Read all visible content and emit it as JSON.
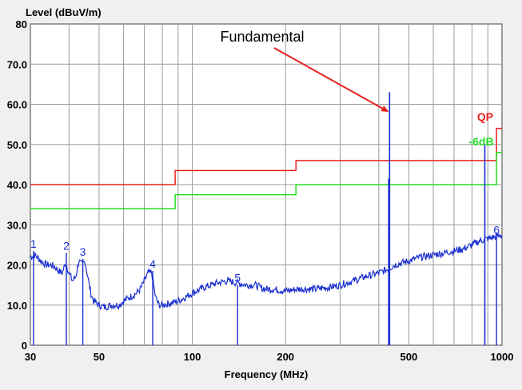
{
  "chart_data": {
    "type": "line",
    "ylabel": "Level (dBuV/m)",
    "xlabel": "Frequency (MHz)",
    "x_scale": "log",
    "xlim": [
      30,
      1000
    ],
    "ylim": [
      0,
      80
    ],
    "grid": true,
    "x_ticks": [
      {
        "value": 30,
        "label": "30"
      },
      {
        "value": 50,
        "label": "50"
      },
      {
        "value": 100,
        "label": "100"
      },
      {
        "value": 200,
        "label": "200"
      },
      {
        "value": 500,
        "label": "500"
      },
      {
        "value": 1000,
        "label": "1000"
      }
    ],
    "x_minor_ticks": [
      40,
      60,
      70,
      80,
      90,
      300,
      400,
      600,
      700,
      800,
      900
    ],
    "y_ticks": [
      {
        "value": 0,
        "label": "0"
      },
      {
        "value": 10,
        "label": "10.0"
      },
      {
        "value": 20,
        "label": "20.0"
      },
      {
        "value": 30,
        "label": "30.0"
      },
      {
        "value": 40,
        "label": "40.0"
      },
      {
        "value": 50,
        "label": "50.0"
      },
      {
        "value": 60,
        "label": "60.0"
      },
      {
        "value": 70,
        "label": "70.0"
      },
      {
        "value": 80,
        "label": "80"
      }
    ],
    "limit_lines": [
      {
        "name": "QP",
        "color": "#e8201c",
        "points": [
          [
            30,
            40
          ],
          [
            88,
            40
          ],
          [
            88,
            43.5
          ],
          [
            216,
            43.5
          ],
          [
            216,
            46
          ],
          [
            960,
            46
          ],
          [
            960,
            54
          ],
          [
            1000,
            54
          ]
        ]
      },
      {
        "name": "-6dB",
        "color": "#22dd22",
        "points": [
          [
            30,
            34
          ],
          [
            88,
            34
          ],
          [
            88,
            37.5
          ],
          [
            216,
            37.5
          ],
          [
            216,
            40
          ],
          [
            960,
            40
          ],
          [
            960,
            48
          ],
          [
            1000,
            48
          ]
        ]
      }
    ],
    "series": [
      {
        "color": "#1a2fd0",
        "x": [
          30,
          31,
          32,
          33,
          34,
          35,
          36,
          37,
          38,
          39,
          40,
          41,
          42,
          43,
          44,
          45,
          46,
          47,
          48,
          50,
          52,
          55,
          58,
          60,
          63,
          66,
          68,
          70,
          72,
          74,
          76,
          78,
          80,
          85,
          90,
          95,
          100,
          110,
          120,
          130,
          140,
          150,
          160,
          170,
          180,
          200,
          220,
          250,
          280,
          300,
          330,
          360,
          400,
          430,
          450,
          500,
          550,
          600,
          650,
          700,
          750,
          800,
          850,
          900,
          950,
          1000
        ],
        "y": [
          22,
          22.5,
          21.5,
          20.5,
          20,
          20,
          19.5,
          18.5,
          18,
          20.5,
          18,
          16,
          17,
          21,
          20,
          21,
          17,
          13,
          11,
          10,
          9.5,
          10,
          10,
          11,
          12,
          13,
          14,
          16,
          18,
          18,
          12,
          10,
          10,
          10.5,
          11,
          12,
          13,
          14.5,
          15.5,
          16,
          15.5,
          15,
          15,
          14,
          14,
          13.5,
          14,
          14,
          14.5,
          15,
          16,
          17,
          18,
          19,
          20,
          21,
          22,
          22.5,
          23,
          23.5,
          24,
          25,
          26,
          26.5,
          27,
          27.5
        ]
      }
    ],
    "markers": [
      {
        "label": "1",
        "x": 30.7,
        "y": 23.5
      },
      {
        "label": "2",
        "x": 39.2,
        "y": 23
      },
      {
        "label": "3",
        "x": 44.3,
        "y": 21.5
      },
      {
        "label": "4",
        "x": 74.5,
        "y": 18.5
      },
      {
        "label": "5",
        "x": 140,
        "y": 15
      },
      {
        "label": "6",
        "x": 960,
        "y": 27
      }
    ],
    "signal_lines": [
      {
        "x": 433.4,
        "y": 63
      },
      {
        "x": 430.6,
        "y": 41.5
      },
      {
        "x": 880,
        "y": 50
      }
    ],
    "annotations": [
      {
        "text": "Fundamental",
        "target": [
          433.4,
          59
        ]
      }
    ],
    "line_labels": [
      {
        "text": "QP",
        "color": "#e8201c"
      },
      {
        "text": "-6dB",
        "color": "#22dd22"
      }
    ]
  }
}
